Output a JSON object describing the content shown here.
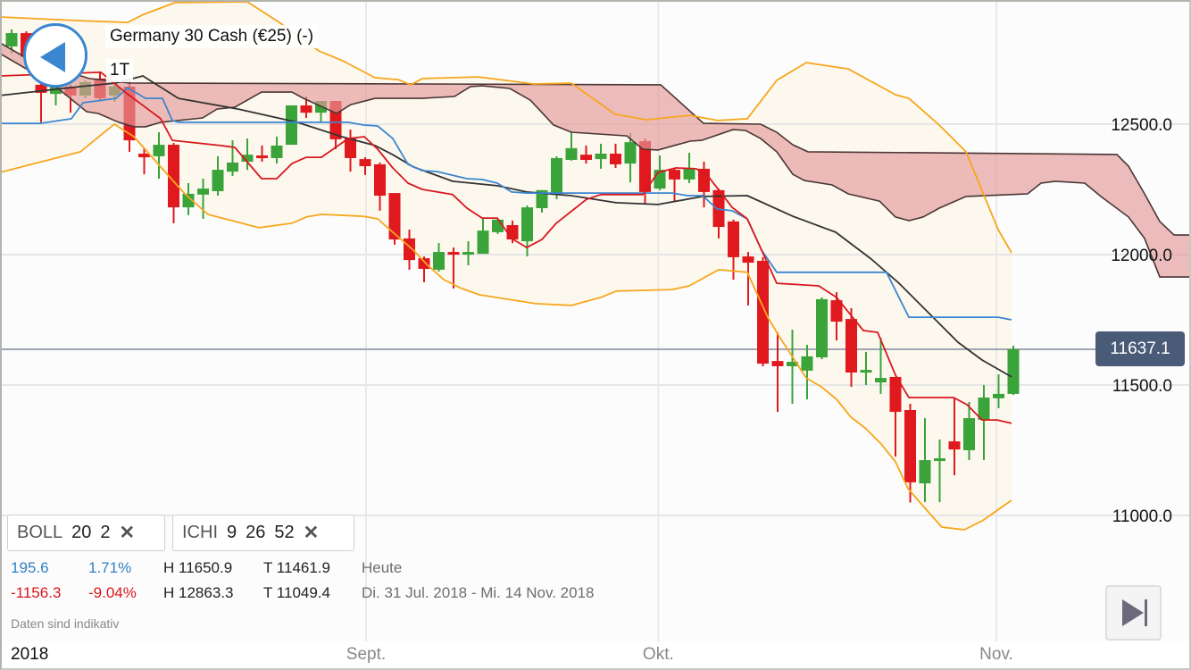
{
  "header": {
    "title": "Germany 30 Cash (€25) (-)",
    "timeframe": "1T"
  },
  "indicators": [
    {
      "name": "BOLL",
      "params": [
        "20",
        "2"
      ],
      "remove_icon": "close-icon"
    },
    {
      "name": "ICHI",
      "params": [
        "9",
        "26",
        "52"
      ],
      "remove_icon": "close-icon"
    }
  ],
  "stats": {
    "today": {
      "change": "195.6",
      "change_pct": "1.71%",
      "high": "H 11650.9",
      "low": "T 11461.9",
      "label": "Heute"
    },
    "period": {
      "change": "-1156.3",
      "change_pct": "-9.04%",
      "high": "H 12863.3",
      "low": "T 11049.4",
      "label": "Di. 31 Jul. 2018 - Mi. 14 Nov. 2018"
    }
  },
  "disclaimer": "Daten sind indikativ",
  "current_price": "11637.1",
  "colors": {
    "up": "#3aa33a",
    "down": "#e0191e",
    "boll": "#f7a61c",
    "boll_fill": "#fdf8ee",
    "tenkan": "#d8191f",
    "kijun": "#3b86d1",
    "middle": "#333333",
    "cloud_edge": "#4a3535",
    "cloud_fill": "#e39a99",
    "accent": "#3a87d0",
    "price_tag": "#4a5b78"
  },
  "chart_data": {
    "type": "candlestick",
    "title": "Germany 30 Cash (€25) (-)",
    "ylim": [
      10517,
      12976
    ],
    "y_ticks": [
      "12500.0",
      "12000.0",
      "11500.0",
      "11000.0"
    ],
    "y_tick_values": [
      12500,
      12000,
      11500,
      11000
    ],
    "x_labels": {
      "year": "2018",
      "months": [
        {
          "label": "Sept.",
          "index": 24.06
        },
        {
          "label": "Okt.",
          "index": 43.9
        },
        {
          "label": "Nov.",
          "index": 66.85
        }
      ]
    },
    "grid": true,
    "ohlc": [
      [
        12798,
        12863.3,
        12771,
        12849
      ],
      [
        12849,
        12856,
        12736,
        12757
      ],
      [
        12651,
        12668,
        12507,
        12620
      ],
      [
        12616,
        12661,
        12572,
        12651
      ],
      [
        12644,
        12651,
        12544,
        12610
      ],
      [
        12610,
        12668,
        12599,
        12661
      ],
      [
        12675,
        12702,
        12589,
        12599
      ],
      [
        12610,
        12651,
        12586,
        12644
      ],
      [
        12644,
        12668,
        12394,
        12438
      ],
      [
        12387,
        12411,
        12308,
        12373
      ],
      [
        12377,
        12469,
        12291,
        12421
      ],
      [
        12421,
        12428,
        12120,
        12181
      ],
      [
        12181,
        12274,
        12151,
        12233
      ],
      [
        12230,
        12291,
        12137,
        12253
      ],
      [
        12243,
        12377,
        12226,
        12325
      ],
      [
        12318,
        12438,
        12301,
        12353
      ],
      [
        12356,
        12445,
        12325,
        12383
      ],
      [
        12380,
        12418,
        12356,
        12370
      ],
      [
        12370,
        12452,
        12349,
        12418
      ],
      [
        12421,
        12572,
        12421,
        12572
      ],
      [
        12572,
        12606,
        12524,
        12544
      ],
      [
        12544,
        12589,
        12510,
        12589
      ],
      [
        12589,
        12589,
        12404,
        12442
      ],
      [
        12445,
        12479,
        12318,
        12370
      ],
      [
        12366,
        12373,
        12305,
        12339
      ],
      [
        12346,
        12353,
        12168,
        12226
      ],
      [
        12236,
        12236,
        12038,
        12058
      ],
      [
        12062,
        12096,
        11942,
        11979
      ],
      [
        11986,
        11993,
        11894,
        11945
      ],
      [
        11942,
        12044,
        11935,
        12010
      ],
      [
        12010,
        12027,
        11870,
        12003
      ],
      [
        12003,
        12051,
        11959,
        12010
      ],
      [
        12003,
        12137,
        12003,
        12092
      ],
      [
        12086,
        12137,
        12079,
        12134
      ],
      [
        12113,
        12130,
        12044,
        12058
      ],
      [
        12051,
        12188,
        11993,
        12181
      ],
      [
        12178,
        12247,
        12161,
        12247
      ],
      [
        12236,
        12377,
        12212,
        12370
      ],
      [
        12363,
        12469,
        12360,
        12408
      ],
      [
        12383,
        12418,
        12349,
        12363
      ],
      [
        12366,
        12425,
        12329,
        12387
      ],
      [
        12387,
        12425,
        12332,
        12346
      ],
      [
        12349,
        12466,
        12277,
        12431
      ],
      [
        12435,
        12445,
        12195,
        12240
      ],
      [
        12253,
        12380,
        12247,
        12325
      ],
      [
        12325,
        12329,
        12205,
        12288
      ],
      [
        12288,
        12390,
        12274,
        12329
      ],
      [
        12329,
        12356,
        12181,
        12240
      ],
      [
        12247,
        12253,
        12062,
        12106
      ],
      [
        12127,
        12134,
        11904,
        11990
      ],
      [
        11993,
        12010,
        11805,
        11969
      ],
      [
        11976,
        11990,
        11572,
        11582
      ],
      [
        11592,
        11702,
        11397,
        11572
      ],
      [
        11572,
        11712,
        11428,
        11589
      ],
      [
        11555,
        11654,
        11445,
        11610
      ],
      [
        11606,
        11836,
        11599,
        11829
      ],
      [
        11825,
        11856,
        11671,
        11743
      ],
      [
        11753,
        11795,
        11493,
        11548
      ],
      [
        11548,
        11627,
        11500,
        11558
      ],
      [
        11510,
        11681,
        11466,
        11527
      ],
      [
        11531,
        11531,
        11226,
        11397
      ],
      [
        11404,
        11428,
        11049.4,
        11127
      ],
      [
        11123,
        11373,
        11051,
        11212
      ],
      [
        11209,
        11291,
        11051,
        11219
      ],
      [
        11284,
        11452,
        11154,
        11253
      ],
      [
        11250,
        11435,
        11212,
        11373
      ],
      [
        11366,
        11500,
        11212,
        11452
      ],
      [
        11449,
        11541,
        11411,
        11466
      ],
      [
        11466,
        11650.9,
        11461.9,
        11637.1
      ]
    ],
    "bollinger_upper": [
      [
        -0.79,
        12911
      ],
      [
        4.61,
        12897
      ],
      [
        7.88,
        12890
      ],
      [
        8.97,
        12921
      ],
      [
        11.09,
        12966
      ],
      [
        16,
        12969
      ],
      [
        18.18,
        12890
      ],
      [
        20.85,
        12781
      ],
      [
        22.48,
        12743
      ],
      [
        24.67,
        12678
      ],
      [
        26.24,
        12671
      ],
      [
        27.09,
        12651
      ],
      [
        27.88,
        12675
      ],
      [
        31.7,
        12681
      ],
      [
        35.45,
        12654
      ],
      [
        38,
        12657
      ],
      [
        40.97,
        12538
      ],
      [
        43.09,
        12517
      ],
      [
        46.06,
        12534
      ],
      [
        47.94,
        12514
      ],
      [
        49.94,
        12521
      ],
      [
        51.94,
        12668
      ],
      [
        53.94,
        12736
      ],
      [
        56.79,
        12712
      ],
      [
        60,
        12613
      ],
      [
        60.91,
        12599
      ],
      [
        62.91,
        12500
      ],
      [
        64.79,
        12394
      ],
      [
        66.97,
        12096
      ],
      [
        67.88,
        12007
      ]
    ],
    "bollinger_lower": [
      [
        -0.79,
        12315
      ],
      [
        4.67,
        12394
      ],
      [
        6.97,
        12500
      ],
      [
        8.3,
        12452
      ],
      [
        10.12,
        12336
      ],
      [
        11.76,
        12233
      ],
      [
        13.33,
        12154
      ],
      [
        16.79,
        12103
      ],
      [
        19.03,
        12120
      ],
      [
        20,
        12144
      ],
      [
        21.03,
        12154
      ],
      [
        23.88,
        12147
      ],
      [
        24.85,
        12137
      ],
      [
        25.88,
        12086
      ],
      [
        27.27,
        12017
      ],
      [
        28.12,
        11966
      ],
      [
        29.33,
        11904
      ],
      [
        30.55,
        11870
      ],
      [
        31.76,
        11846
      ],
      [
        35.58,
        11812
      ],
      [
        38,
        11805
      ],
      [
        40,
        11836
      ],
      [
        41.03,
        11860
      ],
      [
        44.85,
        11866
      ],
      [
        46,
        11880
      ],
      [
        48,
        11942
      ],
      [
        49.94,
        11932
      ],
      [
        51.33,
        11760
      ],
      [
        52.12,
        11685
      ],
      [
        53.94,
        11527
      ],
      [
        54.97,
        11493
      ],
      [
        56,
        11445
      ],
      [
        56.97,
        11377
      ],
      [
        58,
        11332
      ],
      [
        59.03,
        11274
      ],
      [
        60,
        11205
      ],
      [
        60.85,
        11103
      ],
      [
        62.06,
        11024
      ],
      [
        63.15,
        10955
      ],
      [
        64.67,
        10945
      ],
      [
        65.88,
        10979
      ],
      [
        67.88,
        11058
      ]
    ],
    "bollinger_middle": [
      [
        -0.79,
        12610
      ],
      [
        4.67,
        12644
      ],
      [
        7.09,
        12658
      ],
      [
        8.91,
        12685
      ],
      [
        11.33,
        12599
      ],
      [
        15.39,
        12558
      ],
      [
        19.39,
        12507
      ],
      [
        22.42,
        12452
      ],
      [
        24.67,
        12418
      ],
      [
        25.88,
        12383
      ],
      [
        27.27,
        12336
      ],
      [
        29.94,
        12281
      ],
      [
        32.97,
        12264
      ],
      [
        34.97,
        12240
      ],
      [
        38,
        12226
      ],
      [
        41.03,
        12199
      ],
      [
        43.88,
        12192
      ],
      [
        46.91,
        12223
      ],
      [
        49.94,
        12226
      ],
      [
        53.03,
        12147
      ],
      [
        55.94,
        12086
      ],
      [
        58.36,
        11983
      ],
      [
        60.24,
        11890
      ],
      [
        62.24,
        11777
      ],
      [
        64.24,
        11664
      ],
      [
        65.88,
        11596
      ],
      [
        67.88,
        11531
      ]
    ],
    "ichimoku_tenkan": [
      [
        -0.79,
        12685
      ],
      [
        6.06,
        12699
      ],
      [
        7.7,
        12623
      ],
      [
        10.12,
        12521
      ],
      [
        10.91,
        12438
      ],
      [
        14.18,
        12418
      ],
      [
        15.15,
        12411
      ],
      [
        16.97,
        12291
      ],
      [
        18,
        12291
      ],
      [
        19.03,
        12349
      ],
      [
        20,
        12373
      ],
      [
        21.03,
        12373
      ],
      [
        22.85,
        12445
      ],
      [
        23.94,
        12452
      ],
      [
        24.85,
        12404
      ],
      [
        25.88,
        12332
      ],
      [
        26.91,
        12274
      ],
      [
        27.88,
        12250
      ],
      [
        29.94,
        12230
      ],
      [
        30.91,
        12178
      ],
      [
        31.94,
        12140
      ],
      [
        32.97,
        12140
      ],
      [
        33.94,
        12062
      ],
      [
        34.97,
        12027
      ],
      [
        36,
        12058
      ],
      [
        36.97,
        12120
      ],
      [
        39.03,
        12212
      ],
      [
        40,
        12230
      ],
      [
        42.85,
        12230
      ],
      [
        43.88,
        12315
      ],
      [
        45.09,
        12332
      ],
      [
        46.48,
        12329
      ],
      [
        47.27,
        12301
      ],
      [
        48.91,
        12181
      ],
      [
        49.94,
        12137
      ],
      [
        51.94,
        11890
      ],
      [
        54.79,
        11880
      ],
      [
        56,
        11836
      ],
      [
        57.82,
        11709
      ],
      [
        58.79,
        11702
      ],
      [
        60,
        11538
      ],
      [
        60.91,
        11452
      ],
      [
        63.94,
        11452
      ],
      [
        64.85,
        11425
      ],
      [
        65.88,
        11366
      ],
      [
        66.91,
        11366
      ],
      [
        67.88,
        11353
      ]
    ],
    "ichimoku_kijun": [
      [
        -0.79,
        12503
      ],
      [
        1.94,
        12503
      ],
      [
        4.06,
        12521
      ],
      [
        4.85,
        12582
      ],
      [
        7.09,
        12599
      ],
      [
        7.88,
        12640
      ],
      [
        9.09,
        12599
      ],
      [
        10.24,
        12599
      ],
      [
        10.91,
        12514
      ],
      [
        11.33,
        12507
      ],
      [
        22.85,
        12507
      ],
      [
        23.88,
        12497
      ],
      [
        24.85,
        12493
      ],
      [
        25.88,
        12445
      ],
      [
        26.91,
        12346
      ],
      [
        27.88,
        12322
      ],
      [
        28.91,
        12318
      ],
      [
        30.91,
        12291
      ],
      [
        31.94,
        12288
      ],
      [
        32.97,
        12274
      ],
      [
        33.94,
        12240
      ],
      [
        34.97,
        12236
      ],
      [
        44.85,
        12236
      ],
      [
        45.88,
        12226
      ],
      [
        46.91,
        12226
      ],
      [
        47.88,
        12175
      ],
      [
        48.91,
        12168
      ],
      [
        49.94,
        12137
      ],
      [
        50.91,
        12017
      ],
      [
        51.94,
        11932
      ],
      [
        59.39,
        11932
      ],
      [
        60.91,
        11760
      ],
      [
        66.97,
        11760
      ],
      [
        67.88,
        11750
      ]
    ],
    "cloud_top": [
      [
        -0.79,
        12812
      ],
      [
        1.33,
        12743
      ],
      [
        5.27,
        12675
      ],
      [
        8,
        12658
      ],
      [
        44.06,
        12651
      ],
      [
        46.97,
        12503
      ],
      [
        50.85,
        12500
      ],
      [
        51.94,
        12469
      ],
      [
        53.03,
        12421
      ],
      [
        54.06,
        12394
      ],
      [
        75.03,
        12384
      ],
      [
        75.82,
        12339
      ],
      [
        76.91,
        12233
      ],
      [
        77.94,
        12127
      ],
      [
        78.91,
        12075
      ],
      [
        80.06,
        12075
      ]
    ],
    "cloud_bottom": [
      [
        -0.79,
        12771
      ],
      [
        2.85,
        12651
      ],
      [
        5.09,
        12548
      ],
      [
        5.88,
        12541
      ],
      [
        7.27,
        12507
      ],
      [
        8.3,
        12490
      ],
      [
        9.09,
        12490
      ],
      [
        10.12,
        12507
      ],
      [
        12.97,
        12524
      ],
      [
        13.94,
        12558
      ],
      [
        15.15,
        12565
      ],
      [
        16.97,
        12623
      ],
      [
        19.03,
        12623
      ],
      [
        19.82,
        12599
      ],
      [
        22.06,
        12541
      ],
      [
        23.03,
        12575
      ],
      [
        24.67,
        12599
      ],
      [
        27.88,
        12599
      ],
      [
        30.06,
        12606
      ],
      [
        31.15,
        12644
      ],
      [
        31.94,
        12647
      ],
      [
        33.82,
        12637
      ],
      [
        35.21,
        12592
      ],
      [
        36.79,
        12497
      ],
      [
        38,
        12469
      ],
      [
        41.76,
        12455
      ],
      [
        42.85,
        12404
      ],
      [
        43.88,
        12401
      ],
      [
        46.06,
        12435
      ],
      [
        46.85,
        12438
      ],
      [
        48.97,
        12479
      ],
      [
        49.82,
        12476
      ],
      [
        50.85,
        12445
      ],
      [
        51.94,
        12394
      ],
      [
        53.03,
        12308
      ],
      [
        53.82,
        12284
      ],
      [
        55.7,
        12267
      ],
      [
        56.79,
        12233
      ],
      [
        58.91,
        12205
      ],
      [
        60,
        12144
      ],
      [
        60.91,
        12130
      ],
      [
        61.88,
        12144
      ],
      [
        62.97,
        12178
      ],
      [
        64.79,
        12223
      ],
      [
        68.97,
        12233
      ],
      [
        69.88,
        12274
      ],
      [
        70.85,
        12281
      ],
      [
        72.85,
        12274
      ],
      [
        73.94,
        12223
      ],
      [
        75.82,
        12144
      ],
      [
        76.91,
        12062
      ],
      [
        77.94,
        11914
      ],
      [
        80.06,
        11914
      ]
    ],
    "current_price_value": 11637.1
  }
}
